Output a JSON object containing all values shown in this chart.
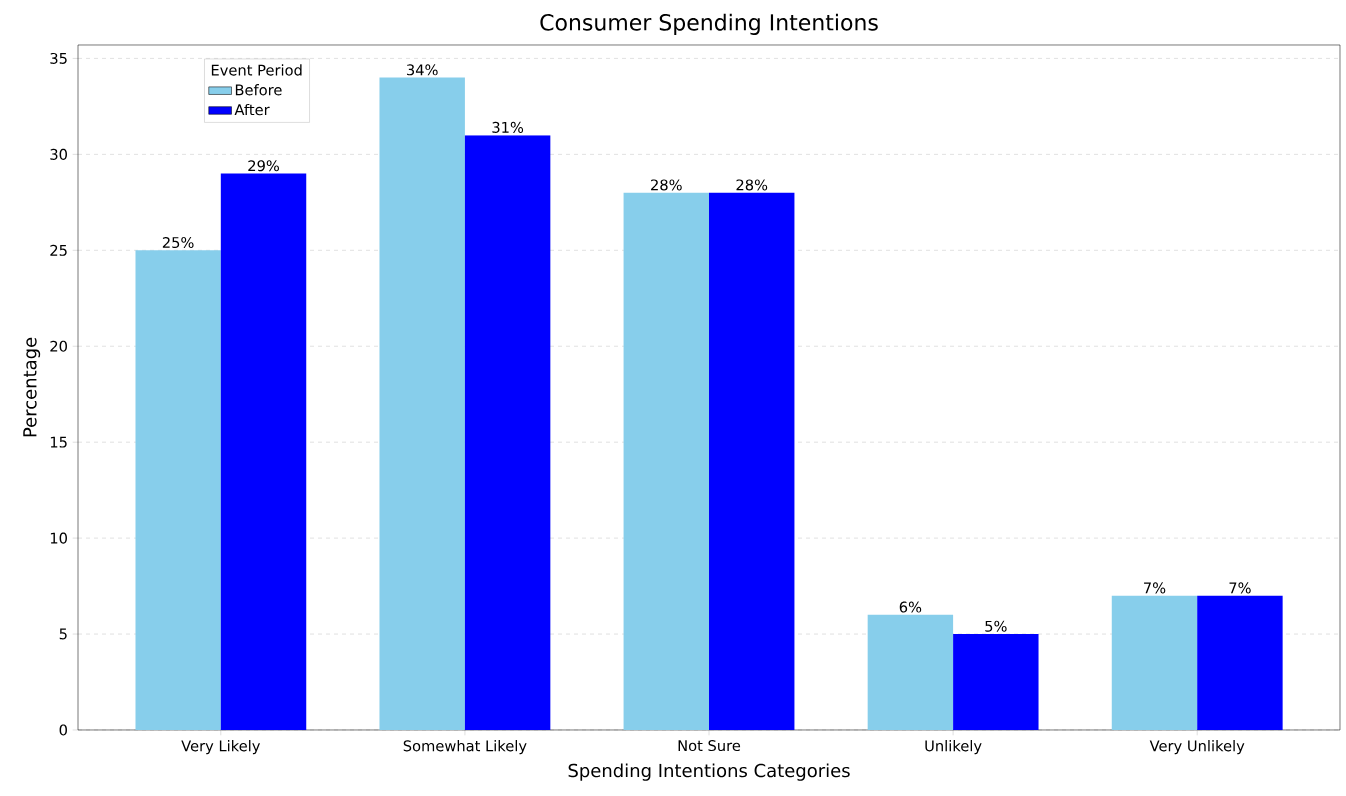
{
  "chart_data": {
    "type": "bar",
    "title": "Consumer Spending Intentions",
    "xlabel": "Spending Intentions Categories",
    "ylabel": "Percentage",
    "legend_title": "Event Period",
    "categories": [
      "Very Likely",
      "Somewhat Likely",
      "Not Sure",
      "Unlikely",
      "Very Unlikely"
    ],
    "series": [
      {
        "name": "Before",
        "color": "#87ceeb",
        "values": [
          25,
          34,
          28,
          6,
          7
        ],
        "value_labels": [
          "25%",
          "34%",
          "28%",
          "6%",
          "7%"
        ]
      },
      {
        "name": "After",
        "color": "#0000ff",
        "values": [
          29,
          31,
          28,
          5,
          7
        ],
        "value_labels": [
          "29%",
          "31%",
          "28%",
          "5%",
          "7%"
        ]
      }
    ],
    "ylim": [
      0,
      35.7
    ],
    "yticks": [
      0,
      5,
      10,
      15,
      20,
      25,
      30,
      35
    ],
    "grid": "y",
    "legend": "top left"
  }
}
